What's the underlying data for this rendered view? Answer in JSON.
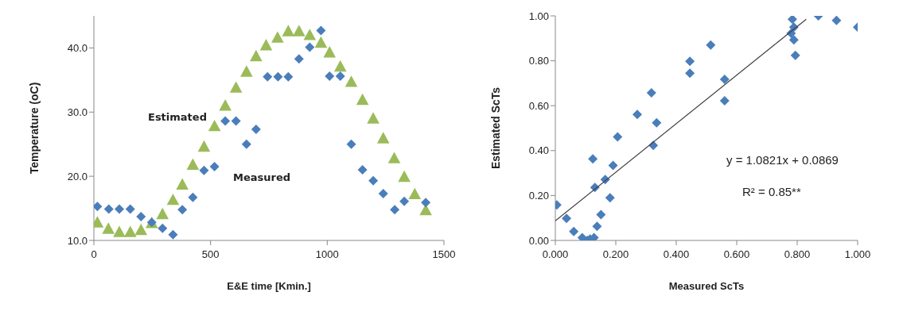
{
  "chart_data": [
    {
      "type": "scatter",
      "xlabel": "E&E time  [Kmin.]",
      "ylabel": "Temperature (oC)",
      "xlim": [
        0,
        1500
      ],
      "xticks": [
        0,
        500,
        1000,
        1500
      ],
      "ylim": [
        10,
        45
      ],
      "yticks": [
        {
          "value": 10,
          "label": "10.0"
        },
        {
          "value": 20,
          "label": "20.0"
        },
        {
          "value": 30,
          "label": "30.0"
        },
        {
          "value": 40,
          "label": "40.0"
        }
      ],
      "grid": false,
      "series": [
        {
          "name": "Estimated",
          "color": "#9bbb59",
          "marker": "triangle",
          "x": [
            15,
            62,
            109,
            156,
            202,
            248,
            294,
            339,
            379,
            424,
            472,
            517,
            563,
            609,
            654,
            695,
            738,
            787,
            833,
            879,
            925,
            973,
            1010,
            1056,
            1103,
            1151,
            1197,
            1240,
            1287,
            1330,
            1375,
            1422
          ],
          "values": [
            12.8,
            11.8,
            11.3,
            11.3,
            11.6,
            12.7,
            14.1,
            16.3,
            18.7,
            21.8,
            24.6,
            27.8,
            31.0,
            33.8,
            36.3,
            38.7,
            40.4,
            41.6,
            42.6,
            42.6,
            42.0,
            40.8,
            39.3,
            37.1,
            34.7,
            31.9,
            29.0,
            25.9,
            22.8,
            19.9,
            17.2,
            14.7
          ]
        },
        {
          "name": "Measured",
          "color": "#4a7ebb",
          "marker": "diamond",
          "x": [
            15,
            64,
            109,
            156,
            202,
            248,
            294,
            339,
            379,
            424,
            472,
            517,
            563,
            609,
            654,
            695,
            744,
            789,
            833,
            879,
            925,
            973,
            1010,
            1056,
            1103,
            1151,
            1197,
            1240,
            1289,
            1330,
            1422
          ],
          "values": [
            15.3,
            14.9,
            14.9,
            14.9,
            13.7,
            12.8,
            11.9,
            10.9,
            14.8,
            16.7,
            20.9,
            21.5,
            28.6,
            28.6,
            25.0,
            27.3,
            35.5,
            35.5,
            35.5,
            38.3,
            40.1,
            42.7,
            35.6,
            35.6,
            25.0,
            21.0,
            19.3,
            17.3,
            14.8,
            16.1,
            15.9
          ]
        }
      ]
    },
    {
      "type": "scatter",
      "xlabel": "Measured  ScTs",
      "ylabel": "Estimated  ScTs",
      "xlim": [
        0,
        1
      ],
      "xticks": [
        {
          "value": 0,
          "label": "0.000"
        },
        {
          "value": 0.2,
          "label": "0.200"
        },
        {
          "value": 0.4,
          "label": "0.400"
        },
        {
          "value": 0.6,
          "label": "0.600"
        },
        {
          "value": 0.8,
          "label": "0.800"
        },
        {
          "value": 1,
          "label": "1.000"
        }
      ],
      "ylim": [
        0,
        1
      ],
      "yticks": [
        {
          "value": 0,
          "label": "0.00"
        },
        {
          "value": 0.2,
          "label": "0.20"
        },
        {
          "value": 0.4,
          "label": "0.40"
        },
        {
          "value": 0.6,
          "label": "0.60"
        },
        {
          "value": 0.8,
          "label": "0.80"
        },
        {
          "value": 1,
          "label": "1.00"
        }
      ],
      "grid": false,
      "annotations": [
        "y = 1.0821x  + 0.0869",
        "R² = 0.85**"
      ],
      "series": [
        {
          "color": "#4a7ebb",
          "marker": "diamond",
          "x": [
            0.005,
            0.037,
            0.061,
            0.089,
            0.106,
            0.115,
            0.128,
            0.124,
            0.131,
            0.138,
            0.151,
            0.165,
            0.181,
            0.191,
            0.206,
            0.271,
            0.318,
            0.324,
            0.335,
            0.445,
            0.445,
            0.514,
            0.56,
            0.56,
            0.784,
            0.789,
            0.78,
            0.789,
            0.794,
            0.87,
            0.93,
            1.0
          ],
          "values": [
            0.158,
            0.098,
            0.04,
            0.012,
            0.0,
            0.006,
            0.012,
            0.363,
            0.236,
            0.063,
            0.115,
            0.271,
            0.19,
            0.334,
            0.461,
            0.561,
            0.657,
            0.423,
            0.524,
            0.798,
            0.745,
            0.87,
            0.717,
            0.622,
            0.985,
            0.95,
            0.922,
            0.893,
            0.824,
            1.0,
            0.98,
            0.95
          ]
        },
        {
          "type": "line",
          "color": "#404040",
          "marker": "none",
          "x": [
            0,
            0.83
          ],
          "values": [
            0.087,
            0.985
          ]
        }
      ]
    }
  ]
}
